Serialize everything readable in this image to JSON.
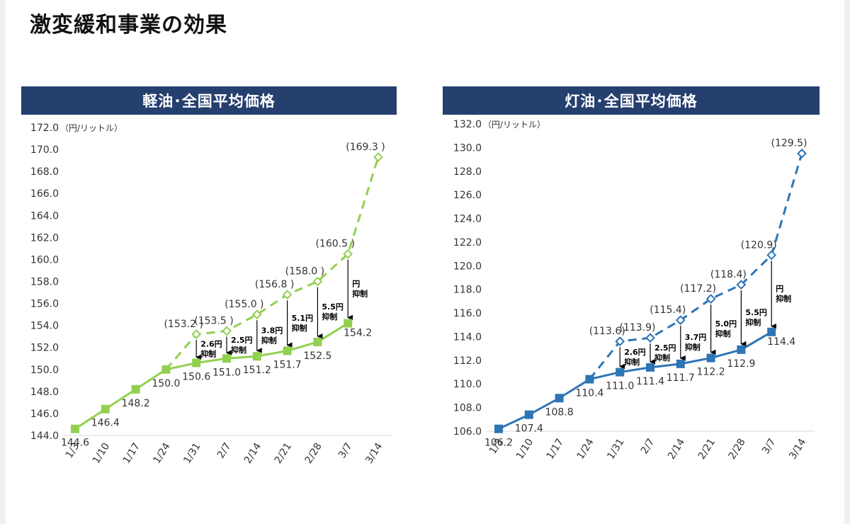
{
  "page": {
    "title": "激変緩和事業の効果"
  },
  "chart_data": [
    {
      "type": "line",
      "title": "軽油･全国平均価格",
      "unit_label": "（円/リットル）",
      "color": "#92d050",
      "marker": "square",
      "projection_marker": "diamond",
      "categories": [
        "1/3",
        "1/10",
        "1/17",
        "1/24",
        "1/31",
        "2/7",
        "2/14",
        "2/21",
        "2/28",
        "3/7",
        "3/14"
      ],
      "ylim": [
        144.0,
        172.0
      ],
      "y_ticks": [
        "144.0",
        "146.0",
        "148.0",
        "150.0",
        "152.0",
        "154.0",
        "156.0",
        "158.0",
        "160.0",
        "162.0",
        "164.0",
        "166.0",
        "168.0",
        "170.0",
        "172.0"
      ],
      "series": [
        {
          "name": "actual",
          "style": "solid",
          "values": [
            144.6,
            146.4,
            148.2,
            150.0,
            150.6,
            151.0,
            151.2,
            151.7,
            152.5,
            154.2,
            null
          ],
          "labels": [
            "144.6",
            "146.4",
            "148.2",
            "150.0",
            "150.6",
            "151.0",
            "151.2",
            "151.7",
            "152.5",
            "154.2",
            ""
          ]
        },
        {
          "name": "without_subsidy",
          "style": "dashed",
          "values": [
            null,
            null,
            null,
            150.0,
            153.2,
            153.5,
            155.0,
            156.8,
            158.0,
            160.5,
            169.3
          ],
          "labels": [
            "",
            "",
            "",
            "",
            "(153.2 )",
            "(153.5 )",
            "(155.0 )",
            "(156.8 )",
            "(158.0 )",
            "(160.5 )",
            "(169.3 )"
          ]
        }
      ],
      "suppression": [
        {
          "index": 4,
          "amount": "2.6円",
          "word": "抑制"
        },
        {
          "index": 5,
          "amount": "2.5円",
          "word": "抑制"
        },
        {
          "index": 6,
          "amount": "3.8円",
          "word": "抑制"
        },
        {
          "index": 7,
          "amount": "5.1円",
          "word": "抑制"
        },
        {
          "index": 8,
          "amount": "5.5円",
          "word": "抑制"
        },
        {
          "index": 9,
          "amount": "円",
          "word": "抑制"
        }
      ]
    },
    {
      "type": "line",
      "title": "灯油･全国平均価格",
      "unit_label": "（円/リットル）",
      "color": "#2e75b6",
      "marker": "square",
      "projection_marker": "diamond",
      "categories": [
        "1/3",
        "1/10",
        "1/17",
        "1/24",
        "1/31",
        "2/7",
        "2/14",
        "2/21",
        "2/28",
        "3/7",
        "3/14"
      ],
      "ylim": [
        106.0,
        132.0
      ],
      "y_ticks": [
        "106.0",
        "108.0",
        "110.0",
        "112.0",
        "114.0",
        "116.0",
        "118.0",
        "120.0",
        "122.0",
        "124.0",
        "126.0",
        "128.0",
        "130.0",
        "132.0"
      ],
      "series": [
        {
          "name": "actual",
          "style": "solid",
          "values": [
            106.2,
            107.4,
            108.8,
            110.4,
            111.0,
            111.4,
            111.7,
            112.2,
            112.9,
            114.4,
            null
          ],
          "labels": [
            "106.2",
            "107.4",
            "108.8",
            "110.4",
            "111.0",
            "111.4",
            "111.7",
            "112.2",
            "112.9",
            "114.4",
            ""
          ]
        },
        {
          "name": "without_subsidy",
          "style": "dashed",
          "values": [
            null,
            null,
            null,
            110.4,
            113.6,
            113.9,
            115.4,
            117.2,
            118.4,
            120.9,
            129.5
          ],
          "labels": [
            "",
            "",
            "",
            "",
            "(113.6)",
            "(113.9)",
            "(115.4)",
            "(117.2)",
            "(118.4)",
            "(120.9)",
            "(129.5)"
          ]
        }
      ],
      "suppression": [
        {
          "index": 4,
          "amount": "2.6円",
          "word": "抑制"
        },
        {
          "index": 5,
          "amount": "2.5円",
          "word": "抑制"
        },
        {
          "index": 6,
          "amount": "3.7円",
          "word": "抑制"
        },
        {
          "index": 7,
          "amount": "5.0円",
          "word": "抑制"
        },
        {
          "index": 8,
          "amount": "5.5円",
          "word": "抑制"
        },
        {
          "index": 9,
          "amount": "円",
          "word": "抑制"
        }
      ]
    }
  ]
}
